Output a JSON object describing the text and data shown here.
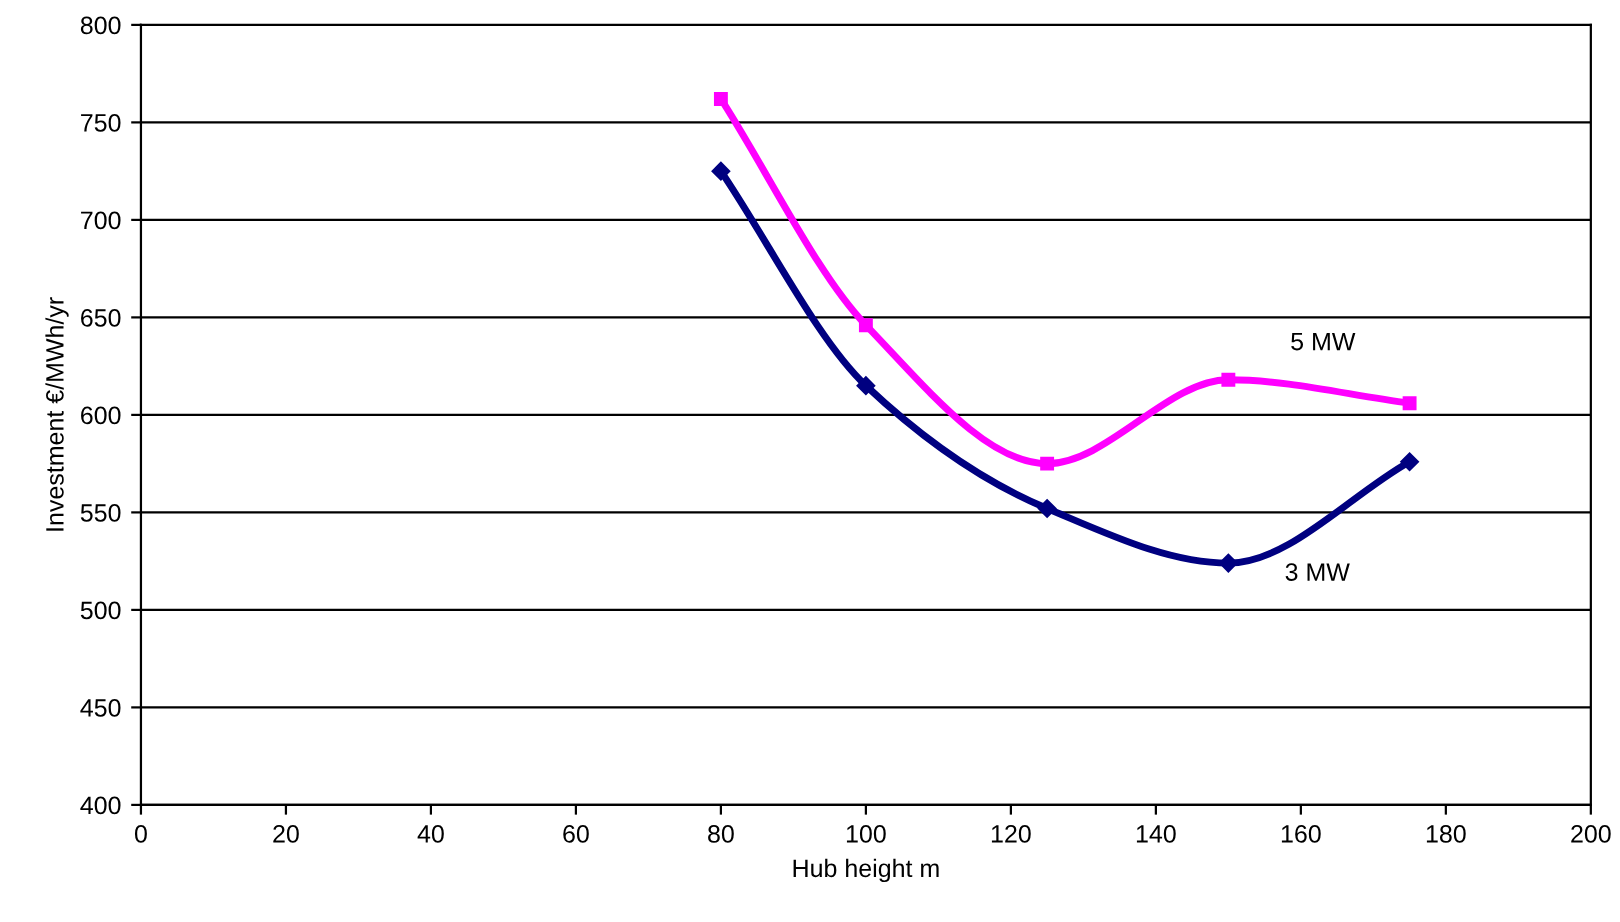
{
  "chart_data": {
    "type": "line",
    "xlabel": "Hub height m",
    "ylabel": "Investment €/MWh/yr",
    "xlim": [
      0,
      200
    ],
    "xticks": [
      0,
      20,
      40,
      60,
      80,
      100,
      120,
      140,
      160,
      180,
      200
    ],
    "ylim": [
      400,
      800
    ],
    "yticks": [
      400,
      450,
      500,
      550,
      600,
      650,
      700,
      750,
      800
    ],
    "grid": "y",
    "legend": false,
    "series": [
      {
        "name": "5 MW",
        "color": "#ff00ff",
        "marker": "square",
        "x": [
          80,
          100,
          125,
          150,
          175
        ],
        "values": [
          762,
          646,
          575,
          618,
          606
        ]
      },
      {
        "name": "3 MW",
        "color": "#000080",
        "marker": "diamond",
        "x": [
          80,
          100,
          125,
          150,
          175
        ],
        "values": [
          725,
          615,
          552,
          524,
          576
        ]
      }
    ]
  }
}
